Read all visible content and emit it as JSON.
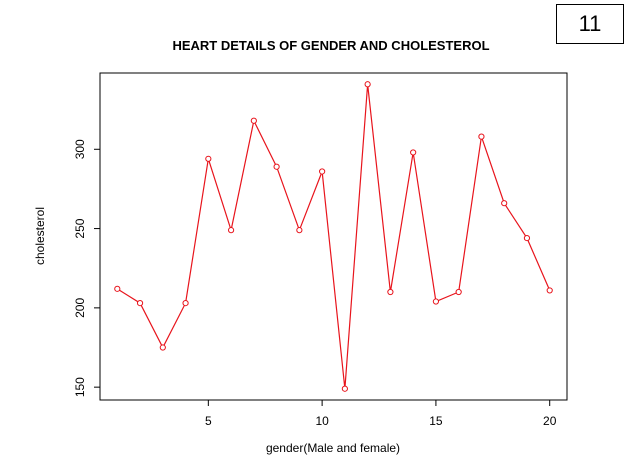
{
  "badge": "11",
  "chart_data": {
    "type": "line",
    "title": "HEART DETAILS OF GENDER AND CHOLESTEROL",
    "xlabel": "gender(Male and female)",
    "ylabel": "cholesterol",
    "x": [
      1,
      2,
      3,
      4,
      5,
      6,
      7,
      8,
      9,
      10,
      11,
      12,
      13,
      14,
      15,
      16,
      17,
      18,
      19,
      20
    ],
    "series": [
      {
        "values": [
          212,
          203,
          175,
          203,
          294,
          249,
          318,
          289,
          249,
          286,
          149,
          341,
          210,
          298,
          204,
          210,
          308,
          266,
          244,
          211
        ]
      }
    ],
    "xlim": [
      0.24,
      20.76
    ],
    "ylim": [
      141.9,
      348.1
    ],
    "xticks": [
      5,
      10,
      15,
      20
    ],
    "yticks": [
      150,
      200,
      250,
      300
    ],
    "grid": false,
    "color": "#e8141c"
  }
}
